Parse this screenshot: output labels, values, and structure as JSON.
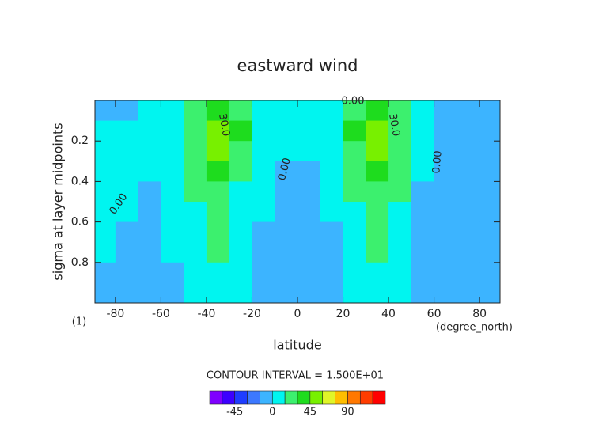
{
  "chart_data": {
    "type": "contour",
    "title": "eastward wind",
    "x_label": "latitude",
    "x_unit": "(degree_north)",
    "y_label": "sigma at layer midpoints",
    "y_unit": "(1)",
    "note": "CONTOUR INTERVAL = 1.500E+01",
    "x": [
      -85,
      -75,
      -65,
      -55,
      -45,
      -35,
      -25,
      -15,
      -5,
      5,
      15,
      25,
      35,
      45,
      55,
      65,
      75,
      85
    ],
    "y": [
      0.05,
      0.15,
      0.25,
      0.35,
      0.45,
      0.55,
      0.65,
      0.75,
      0.85,
      0.95
    ],
    "values": [
      [
        -3,
        -2,
        2,
        10,
        20,
        32,
        20,
        8,
        3,
        3,
        8,
        20,
        32,
        20,
        8,
        -2,
        -4,
        -5
      ],
      [
        3,
        2,
        6,
        14,
        28,
        48,
        30,
        10,
        4,
        4,
        12,
        30,
        48,
        28,
        10,
        -2,
        -4,
        -5
      ],
      [
        5,
        6,
        8,
        12,
        25,
        45,
        25,
        8,
        1,
        1,
        10,
        25,
        45,
        25,
        8,
        -2,
        -4,
        -5
      ],
      [
        6,
        4,
        1,
        8,
        20,
        35,
        18,
        4,
        -2,
        -2,
        5,
        20,
        36,
        20,
        3,
        -3,
        -4,
        -5
      ],
      [
        5,
        2,
        -2,
        5,
        16,
        26,
        12,
        2,
        -3,
        -3,
        2,
        15,
        27,
        16,
        -1,
        -3,
        -4,
        -5
      ],
      [
        4,
        1,
        -3,
        3,
        12,
        20,
        8,
        1,
        -4,
        -4,
        1,
        10,
        20,
        12,
        -2,
        -3,
        -4,
        -5
      ],
      [
        2,
        -1,
        -3,
        2,
        10,
        17,
        6,
        -1,
        -5,
        -5,
        -1,
        8,
        17,
        10,
        -2,
        -3,
        -4,
        -5
      ],
      [
        1,
        -2,
        -3,
        1,
        8,
        15,
        4,
        -2,
        -5,
        -5,
        -2,
        5,
        16,
        8,
        -2,
        -3,
        -4,
        -5
      ],
      [
        -1,
        -2,
        -3,
        -1,
        6,
        10,
        3,
        -3,
        -5,
        -5,
        -3,
        3,
        12,
        6,
        -3,
        -3,
        -4,
        -5
      ],
      [
        -2,
        -3,
        -3,
        -2,
        3,
        6,
        2,
        -3,
        -5,
        -5,
        -3,
        2,
        6,
        3,
        -3,
        -3,
        -4,
        -5
      ]
    ],
    "xlim": [
      -89,
      89
    ],
    "ylim": [
      1,
      0
    ],
    "xticks": [
      -80,
      -60,
      -40,
      -20,
      0,
      20,
      40,
      60,
      80
    ],
    "yticks": [
      0.2,
      0.4,
      0.6,
      0.8
    ],
    "contour_labels": [
      "0.00",
      "30.0",
      "30.0",
      "0.00",
      "0.00",
      "0.00"
    ],
    "colorbar": {
      "levels": [
        -75,
        -60,
        -45,
        -30,
        -15,
        0,
        15,
        30,
        45,
        60,
        75,
        90,
        105,
        120,
        135
      ],
      "colors": [
        "#7f00ff",
        "#3c00ff",
        "#1e3cff",
        "#3c78ff",
        "#3cb4ff",
        "#00f5f0",
        "#3cf06e",
        "#1edc1e",
        "#78f000",
        "#e0f528",
        "#ffbe00",
        "#ff7800",
        "#ff3c00",
        "#ff0000",
        "#ff9696"
      ],
      "ticks": [
        -45,
        0,
        45,
        90
      ]
    }
  }
}
